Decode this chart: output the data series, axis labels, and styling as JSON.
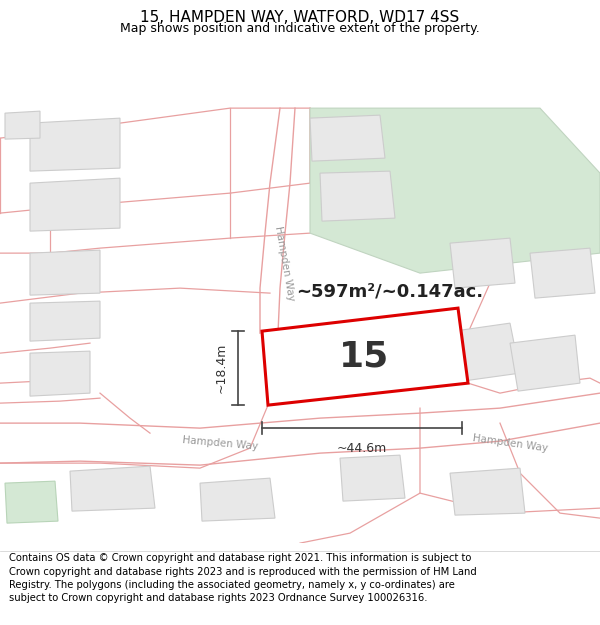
{
  "title": "15, HAMPDEN WAY, WATFORD, WD17 4SS",
  "subtitle": "Map shows position and indicative extent of the property.",
  "footer": "Contains OS data © Crown copyright and database right 2021. This information is subject to Crown copyright and database rights 2023 and is reproduced with the permission of HM Land Registry. The polygons (including the associated geometry, namely x, y co-ordinates) are subject to Crown copyright and database rights 2023 Ordnance Survey 100026316.",
  "map_bg": "#f8f8f8",
  "boundary_color": "#e8a0a0",
  "building_fill": "#e8e8e8",
  "building_edge": "#cccccc",
  "highlight_fill": "#ffffff",
  "highlight_edge": "#dd0000",
  "green_fill": "#d4e8d4",
  "green_edge": "#c0d4c0",
  "road_label_color": "#999999",
  "dim_line_color": "#444444",
  "area_text": "~597m²/~0.147ac.",
  "property_label": "15",
  "dim_width": "~44.6m",
  "dim_height": "~18.4m",
  "footer_fontsize": 7.2,
  "title_fontsize": 11,
  "subtitle_fontsize": 9
}
